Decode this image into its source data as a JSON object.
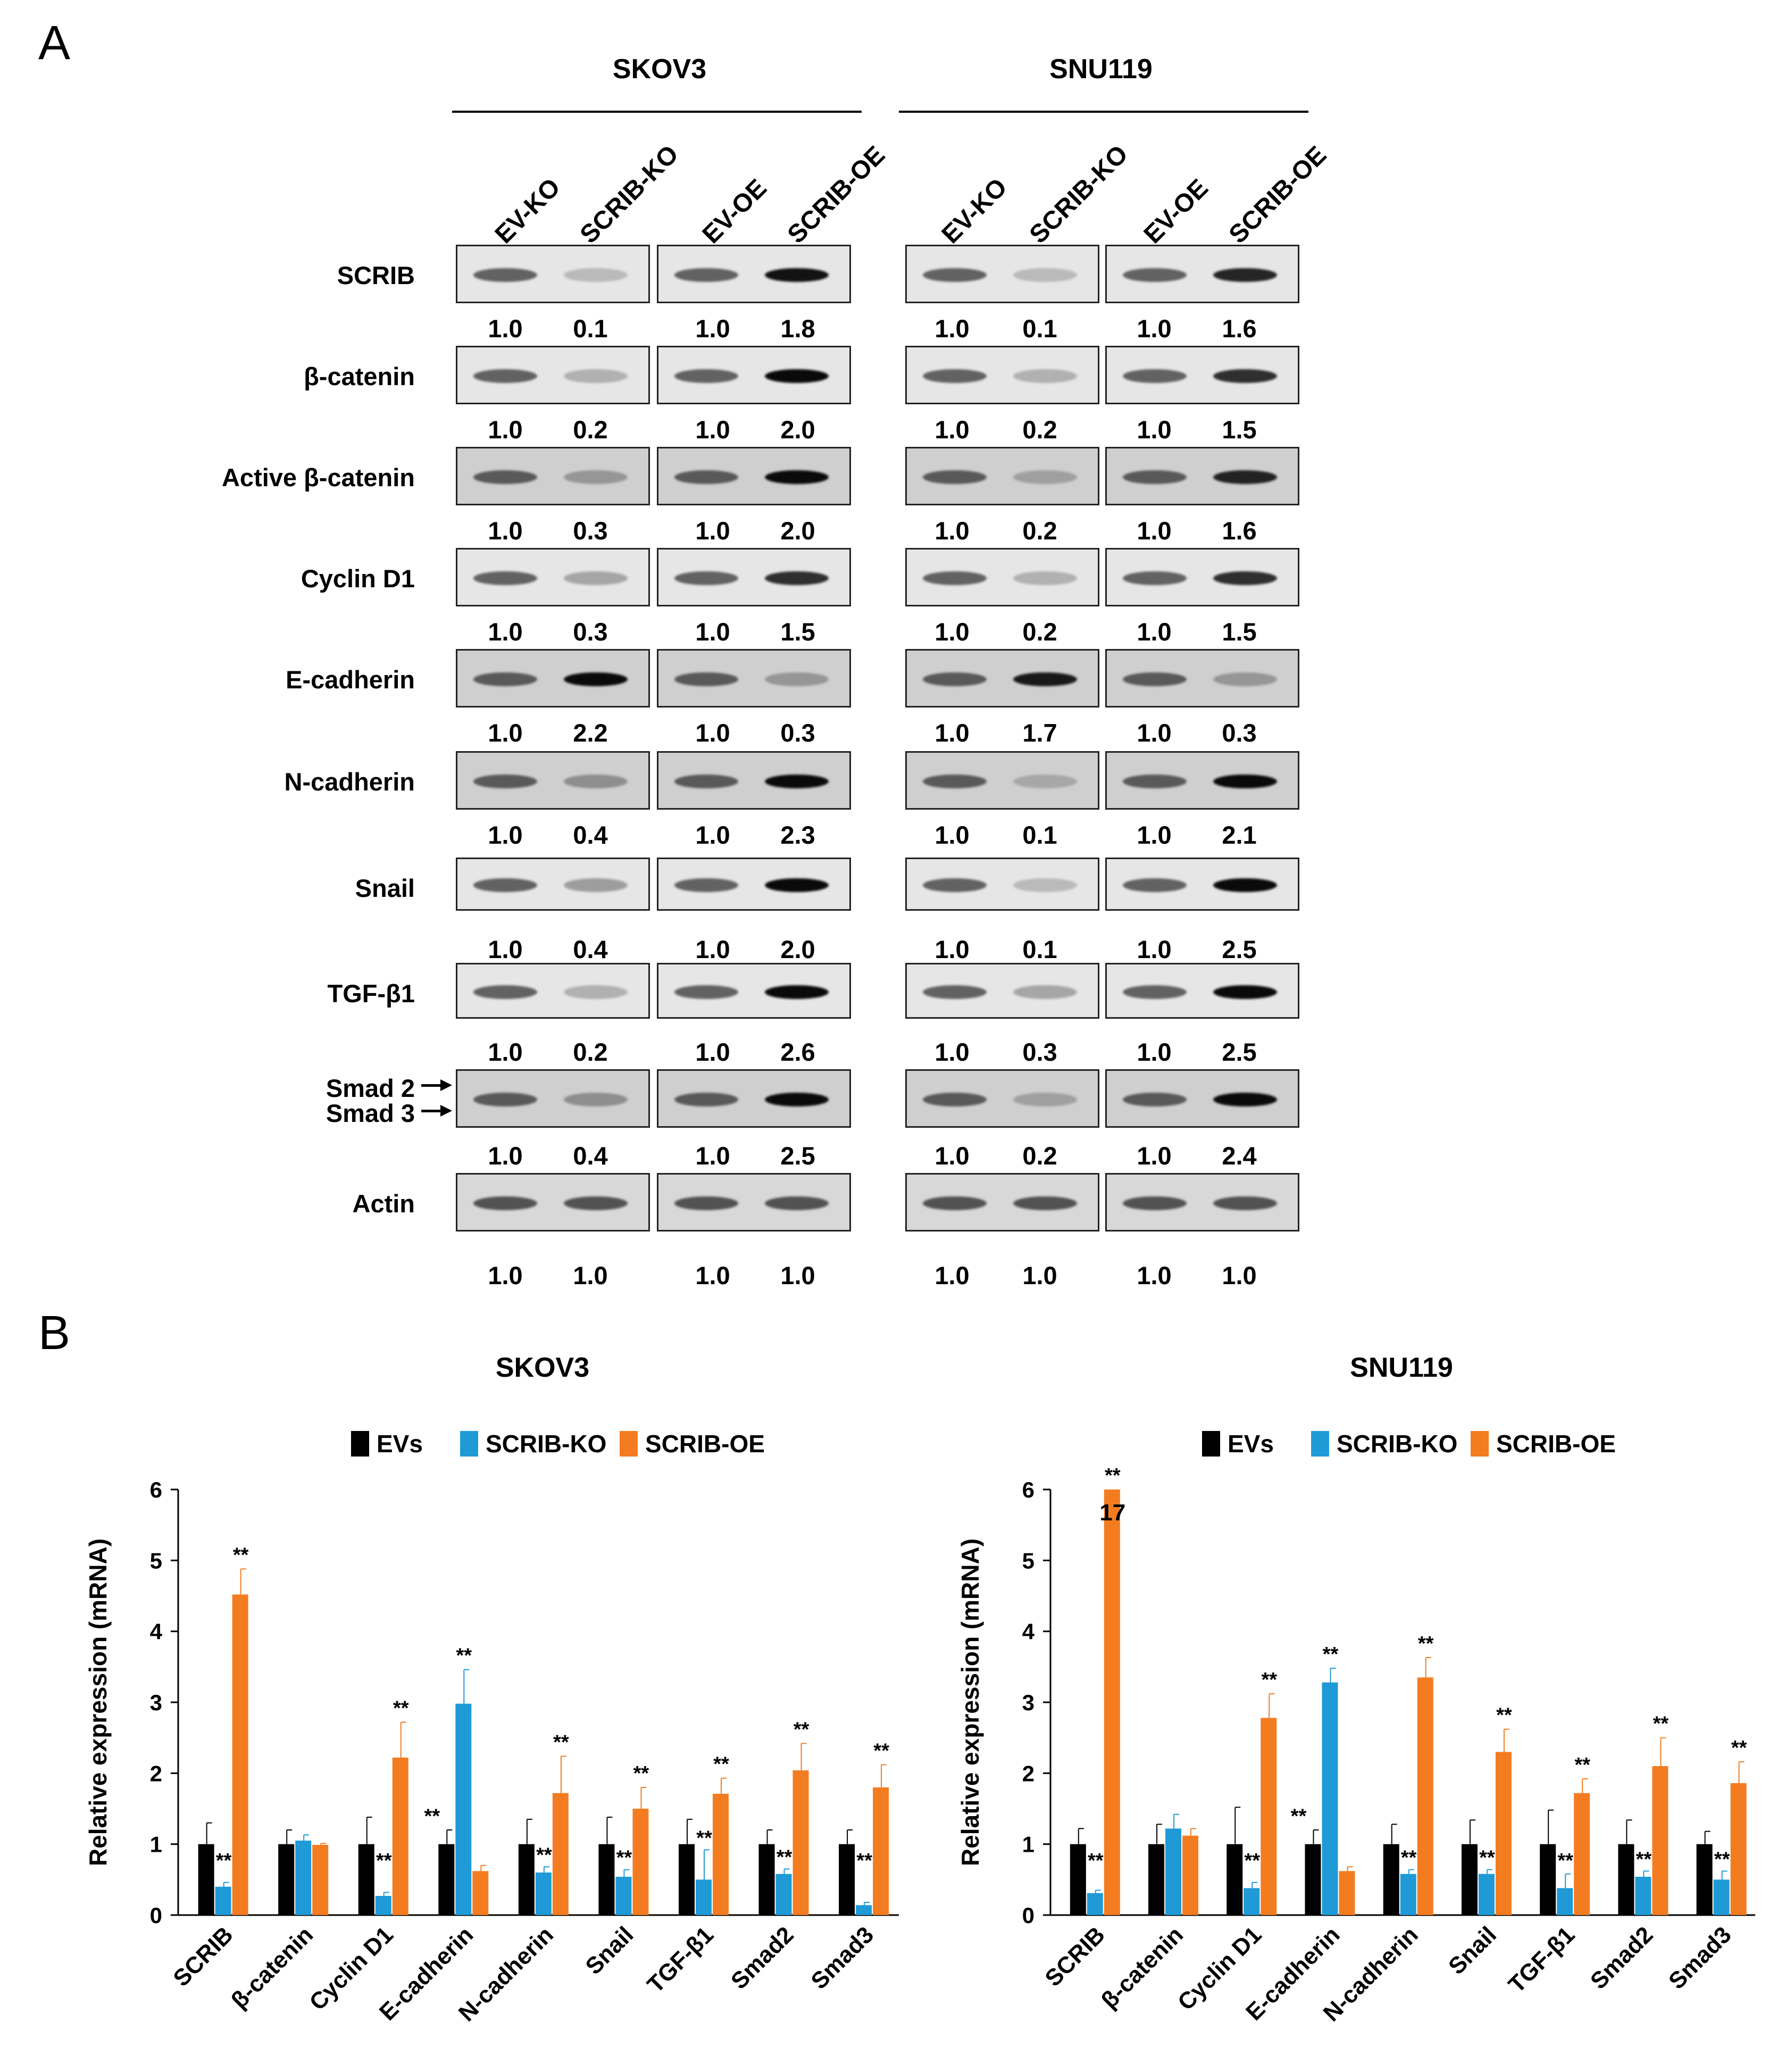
{
  "panelA": {
    "letter": "A",
    "cell_lines": [
      "SKOV3",
      "SNU119"
    ],
    "lanes": [
      "EV-KO",
      "SCRIB-KO",
      "EV-OE",
      "SCRIB-OE"
    ],
    "rows": [
      {
        "label": "SCRIB",
        "skov3": [
          "1.0",
          "0.1",
          "1.0",
          "1.8"
        ],
        "snu119": [
          "1.0",
          "0.1",
          "1.0",
          "1.6"
        ]
      },
      {
        "label": "β-catenin",
        "skov3": [
          "1.0",
          "0.2",
          "1.0",
          "2.0"
        ],
        "snu119": [
          "1.0",
          "0.2",
          "1.0",
          "1.5"
        ]
      },
      {
        "label": "Active β-catenin",
        "skov3": [
          "1.0",
          "0.3",
          "1.0",
          "2.0"
        ],
        "snu119": [
          "1.0",
          "0.2",
          "1.0",
          "1.6"
        ]
      },
      {
        "label": "Cyclin D1",
        "skov3": [
          "1.0",
          "0.3",
          "1.0",
          "1.5"
        ],
        "snu119": [
          "1.0",
          "0.2",
          "1.0",
          "1.5"
        ]
      },
      {
        "label": "E-cadherin",
        "skov3": [
          "1.0",
          "2.2",
          "1.0",
          "0.3"
        ],
        "snu119": [
          "1.0",
          "1.7",
          "1.0",
          "0.3"
        ]
      },
      {
        "label": "N-cadherin",
        "skov3": [
          "1.0",
          "0.4",
          "1.0",
          "2.3"
        ],
        "snu119": [
          "1.0",
          "0.1",
          "1.0",
          "2.1"
        ]
      },
      {
        "label": "Snail",
        "skov3": [
          "1.0",
          "0.4",
          "1.0",
          "2.0"
        ],
        "snu119": [
          "1.0",
          "0.1",
          "1.0",
          "2.5"
        ]
      },
      {
        "label": "TGF-β1",
        "skov3": [
          "1.0",
          "0.2",
          "1.0",
          "2.6"
        ],
        "snu119": [
          "1.0",
          "0.3",
          "1.0",
          "2.5"
        ]
      },
      {
        "label": "Smad 2",
        "label2": "Smad 3",
        "skov3": [
          "1.0",
          "0.4",
          "1.0",
          "2.5"
        ],
        "snu119": [
          "1.0",
          "0.2",
          "1.0",
          "2.4"
        ]
      },
      {
        "label": "Actin",
        "skov3": [
          "1.0",
          "1.0",
          "1.0",
          "1.0"
        ],
        "snu119": [
          "1.0",
          "1.0",
          "1.0",
          "1.0"
        ]
      }
    ]
  },
  "panelB": {
    "letter": "B",
    "legend": [
      "EVs",
      "SCRIB-KO",
      "SCRIB-OE"
    ],
    "colors": {
      "EVs": "#000000",
      "SCRIB-KO": "#1f9ad6",
      "SCRIB-OE": "#f47c20"
    }
  },
  "chart_data": [
    {
      "type": "bar",
      "title": "SKOV3",
      "ylabel": "Relative expression (mRNA)",
      "xlabel": "",
      "ylim": [
        0,
        6
      ],
      "yticks": [
        "0",
        "1",
        "2",
        "3",
        "4",
        "5",
        "6"
      ],
      "categories": [
        "SCRIB",
        "β-catenin",
        "Cyclin D1",
        "E-cadherin",
        "N-cadherin",
        "Snail",
        "TGF-β1",
        "Smad2",
        "Smad3"
      ],
      "series": [
        {
          "name": "EVs",
          "values": [
            1,
            1,
            1,
            1,
            1,
            1,
            1,
            1,
            1
          ],
          "errors": [
            0.3,
            0.2,
            0.38,
            0.2,
            0.35,
            0.38,
            0.35,
            0.2,
            0.2
          ],
          "sig": [
            "",
            "",
            "",
            "**",
            "",
            "",
            "",
            "",
            ""
          ]
        },
        {
          "name": "SCRIB-KO",
          "values": [
            0.4,
            1.05,
            0.27,
            2.98,
            0.6,
            0.54,
            0.5,
            0.58,
            0.14
          ],
          "errors": [
            0.06,
            0.08,
            0.05,
            0.48,
            0.08,
            0.1,
            0.42,
            0.07,
            0.04
          ],
          "sig": [
            "**",
            "",
            "**",
            "**",
            "**",
            "**",
            "**",
            "**",
            "**"
          ]
        },
        {
          "name": "SCRIB-OE",
          "values": [
            4.52,
            0.99,
            2.22,
            0.62,
            1.72,
            1.5,
            1.71,
            2.04,
            1.8
          ],
          "errors": [
            0.36,
            0.02,
            0.5,
            0.08,
            0.52,
            0.3,
            0.22,
            0.38,
            0.32
          ],
          "sig": [
            "**",
            "",
            "**",
            "",
            "**",
            "**",
            "**",
            "**",
            "**"
          ]
        }
      ]
    },
    {
      "type": "bar",
      "title": "SNU119",
      "ylabel": "Relative expression (mRNA)",
      "xlabel": "",
      "ylim": [
        0,
        6
      ],
      "yticks": [
        "0",
        "1",
        "2",
        "3",
        "4",
        "5",
        "6"
      ],
      "categories": [
        "SCRIB",
        "β-catenin",
        "Cyclin D1",
        "E-cadherin",
        "N-cadherin",
        "Snail",
        "TGF-β1",
        "Smad2",
        "Smad3"
      ],
      "annotation": "17",
      "series": [
        {
          "name": "EVs",
          "values": [
            1,
            1,
            1,
            1,
            1,
            1,
            1,
            1,
            1
          ],
          "errors": [
            0.22,
            0.28,
            0.52,
            0.2,
            0.28,
            0.34,
            0.48,
            0.34,
            0.18
          ],
          "sig": [
            "",
            "",
            "",
            "**",
            "",
            "",
            "",
            "",
            ""
          ]
        },
        {
          "name": "SCRIB-KO",
          "values": [
            0.31,
            1.22,
            0.38,
            3.28,
            0.58,
            0.58,
            0.38,
            0.54,
            0.5
          ],
          "errors": [
            0.04,
            0.2,
            0.08,
            0.2,
            0.06,
            0.06,
            0.2,
            0.08,
            0.12
          ],
          "sig": [
            "**",
            "",
            "**",
            "**",
            "**",
            "**",
            "**",
            "**",
            "**"
          ]
        },
        {
          "name": "SCRIB-OE",
          "values": [
            6,
            1.12,
            2.78,
            0.62,
            3.35,
            2.3,
            1.72,
            2.1,
            1.86
          ],
          "errors": [
            0,
            0.1,
            0.34,
            0.06,
            0.28,
            0.32,
            0.2,
            0.4,
            0.3
          ],
          "sig": [
            "**",
            "",
            "**",
            "",
            "**",
            "**",
            "**",
            "**",
            "**"
          ]
        }
      ]
    }
  ]
}
